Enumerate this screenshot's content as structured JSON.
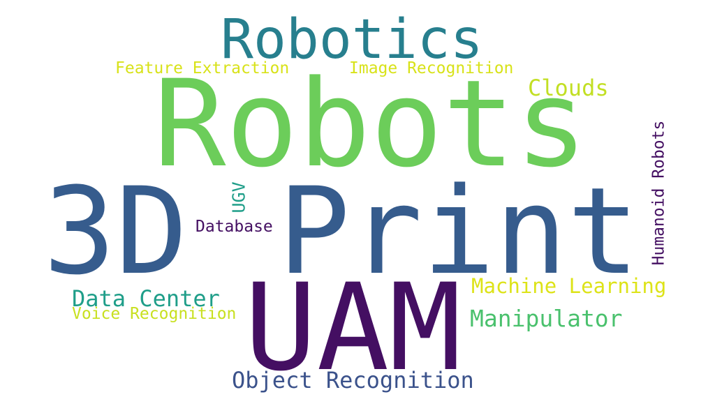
{
  "words": [
    {
      "key": "print_3d_a",
      "text": "3D",
      "color": "#365c8d"
    },
    {
      "key": "print_3d_b",
      "text": "Print",
      "color": "#365c8d"
    },
    {
      "key": "robots",
      "text": "Robots",
      "color": "#6ccd5a"
    },
    {
      "key": "uam",
      "text": "UAM",
      "color": "#440f62"
    },
    {
      "key": "robotics",
      "text": "Robotics",
      "color": "#277f8e"
    },
    {
      "key": "feature_extraction",
      "text": "Feature Extraction",
      "color": "#d8e219"
    },
    {
      "key": "image_recognition",
      "text": "Image Recognition",
      "color": "#d8e219"
    },
    {
      "key": "clouds",
      "text": "Clouds",
      "color": "#c2df23"
    },
    {
      "key": "humanoid_robots",
      "text": "Humanoid Robots",
      "color": "#440f62"
    },
    {
      "key": "ugv",
      "text": "UGV",
      "color": "#1f9e89"
    },
    {
      "key": "database",
      "text": "Database",
      "color": "#440f62"
    },
    {
      "key": "machine_learning",
      "text": "Machine Learning",
      "color": "#dde318"
    },
    {
      "key": "data_center",
      "text": "Data Center",
      "color": "#1f9e89"
    },
    {
      "key": "voice_recognition",
      "text": "Voice Recognition",
      "color": "#c8e020"
    },
    {
      "key": "manipulator",
      "text": "Manipulator",
      "color": "#4ac16d"
    },
    {
      "key": "object_recognition",
      "text": "Object Recognition",
      "color": "#3b528b"
    }
  ]
}
